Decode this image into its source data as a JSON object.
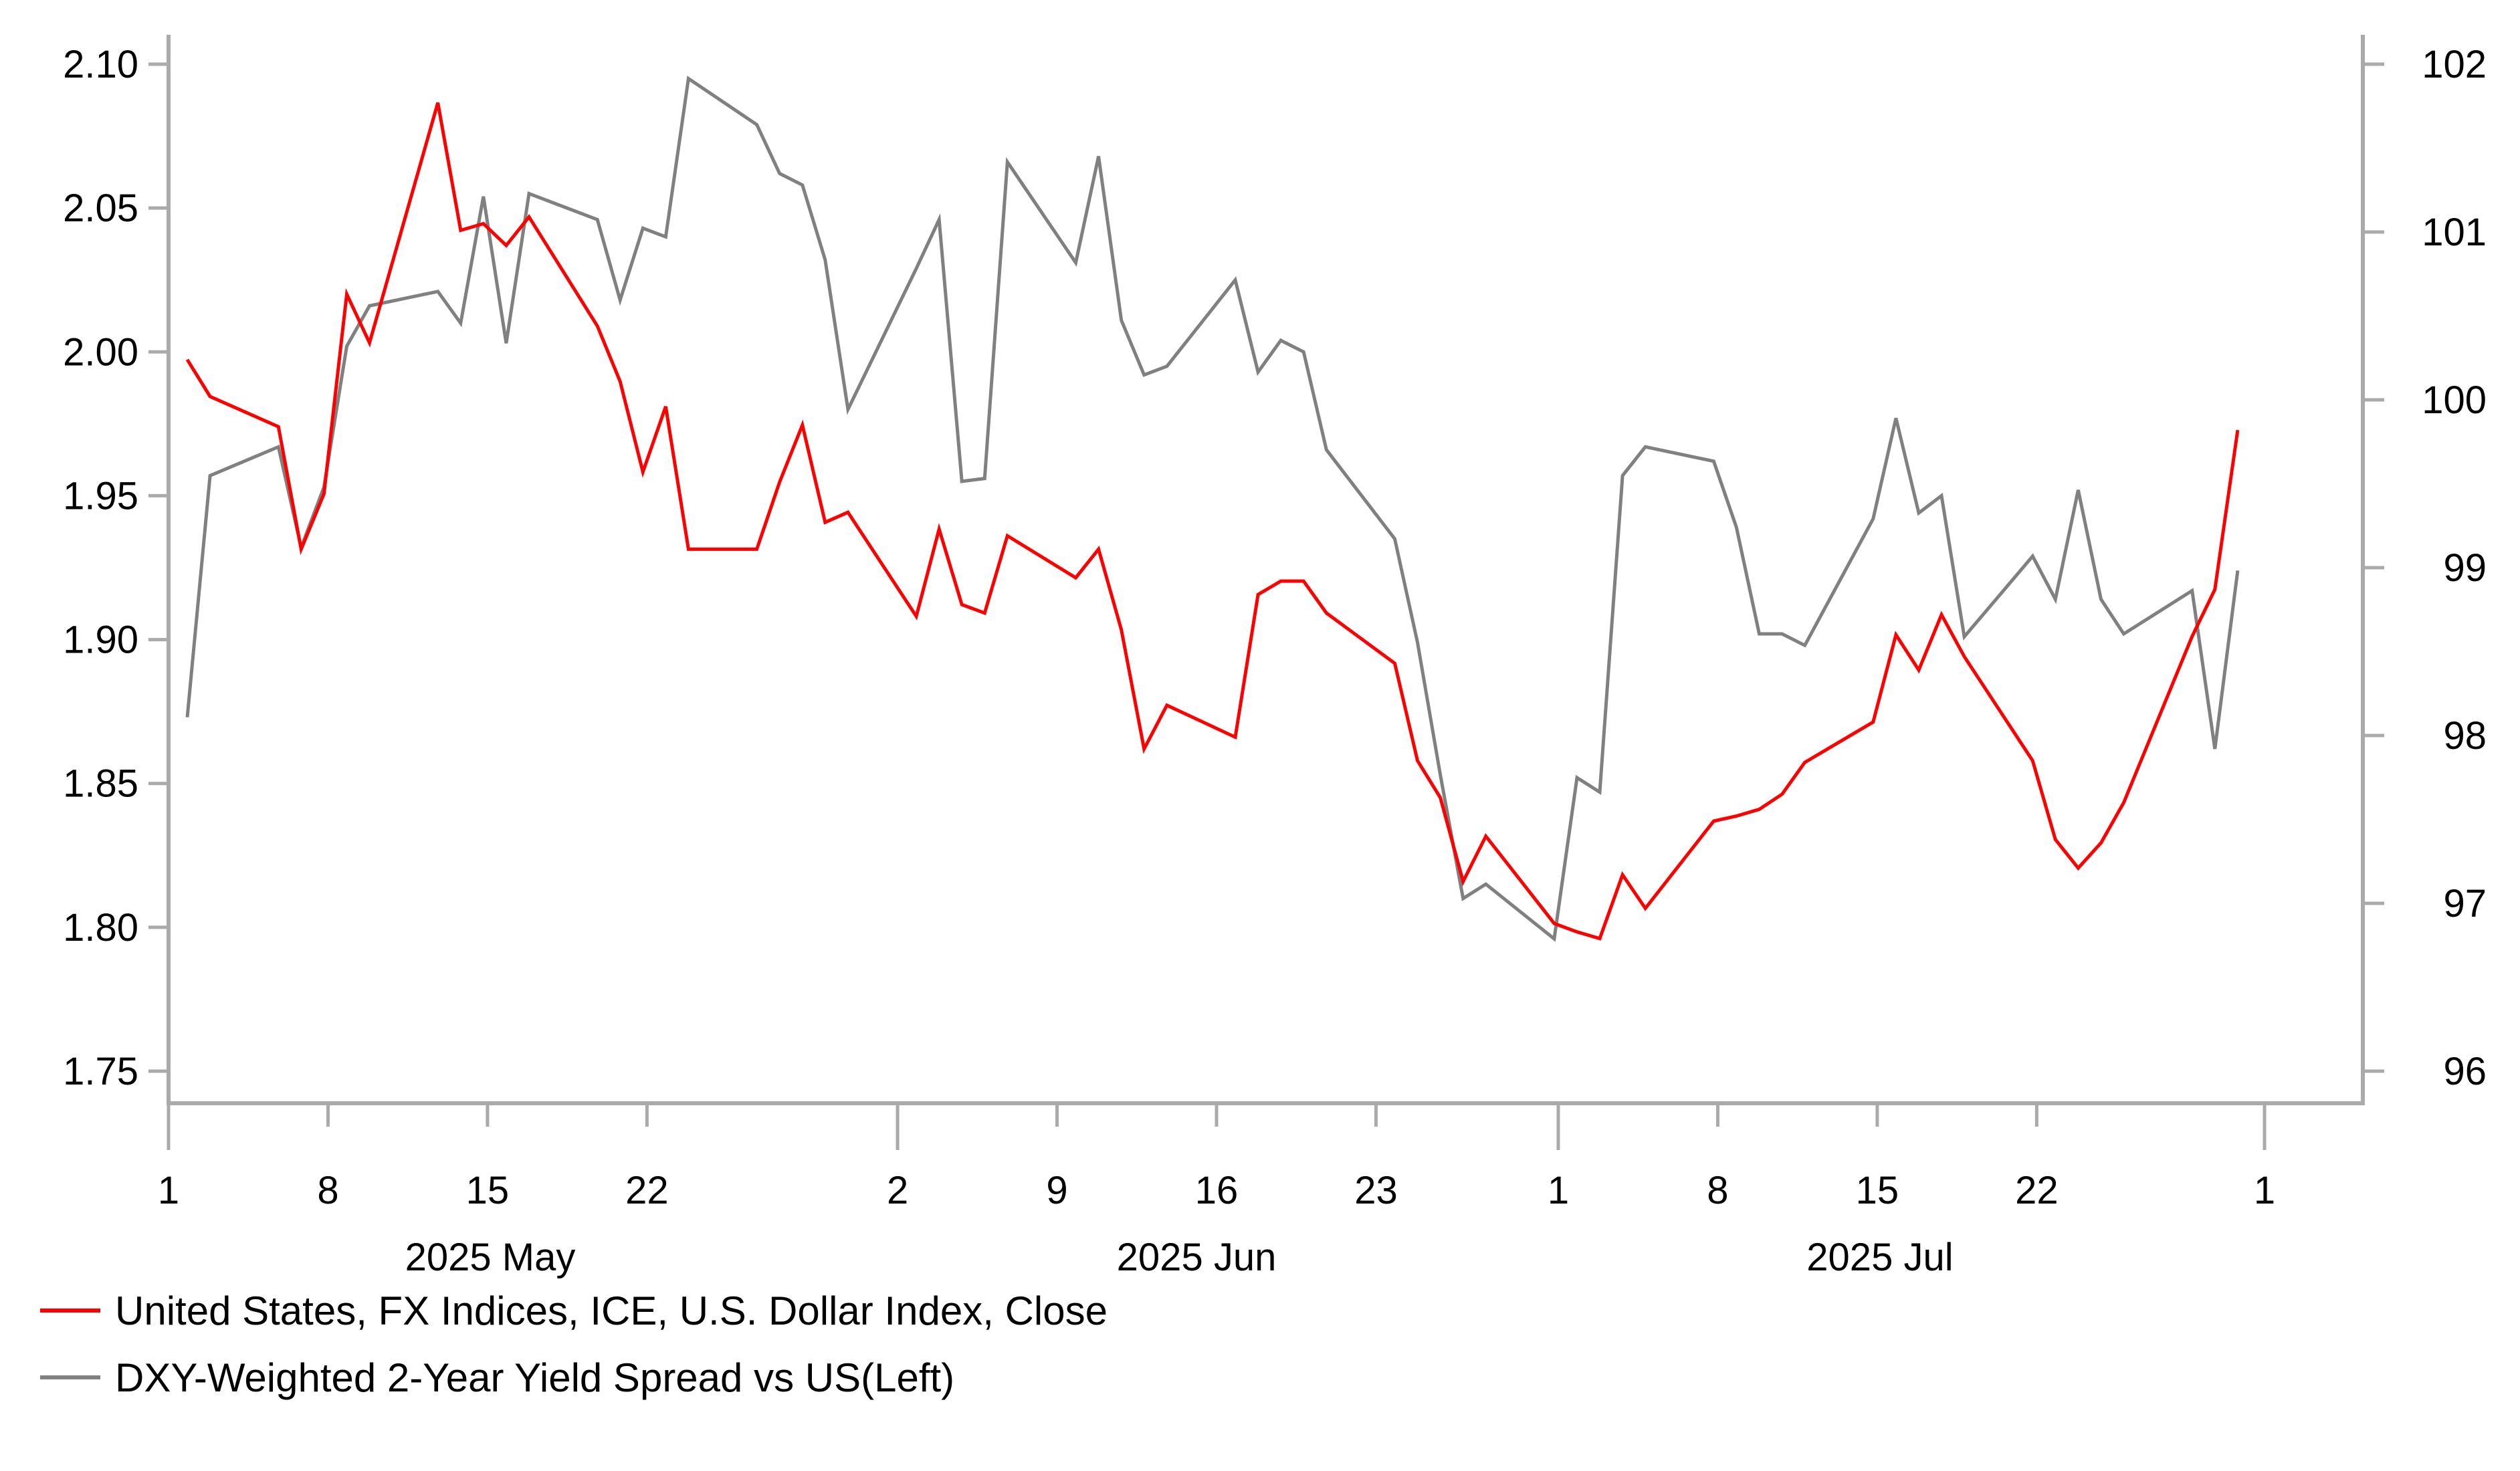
{
  "chart_data": {
    "type": "line",
    "title": "",
    "xlabel": "",
    "ylabel_left": "",
    "ylabel_right": "",
    "grid": false,
    "legend_position": "bottom-left",
    "x_ticks": [
      {
        "label": "1",
        "date": "2025-05-01",
        "major": true
      },
      {
        "label": "8",
        "date": "2025-05-08",
        "major": false
      },
      {
        "label": "15",
        "date": "2025-05-15",
        "major": false
      },
      {
        "label": "22",
        "date": "2025-05-22",
        "major": false
      },
      {
        "label": "2",
        "date": "2025-06-02",
        "major": true
      },
      {
        "label": "9",
        "date": "2025-06-09",
        "major": false
      },
      {
        "label": "16",
        "date": "2025-06-16",
        "major": false
      },
      {
        "label": "23",
        "date": "2025-06-23",
        "major": false
      },
      {
        "label": "1",
        "date": "2025-07-01",
        "major": true
      },
      {
        "label": "8",
        "date": "2025-07-08",
        "major": false
      },
      {
        "label": "15",
        "date": "2025-07-15",
        "major": false
      },
      {
        "label": "22",
        "date": "2025-07-22",
        "major": false
      },
      {
        "label": "1",
        "date": "2025-08-01",
        "major": true
      }
    ],
    "month_labels": [
      {
        "label": "2025 May",
        "date": "2025-05-16"
      },
      {
        "label": "2025 Jun",
        "date": "2025-06-16"
      },
      {
        "label": "2025 Jul",
        "date": "2025-07-16"
      }
    ],
    "x_range": [
      "2025-05-01",
      "2025-08-05"
    ],
    "left_axis": {
      "ticks": [
        "1.75",
        "1.80",
        "1.85",
        "1.90",
        "1.95",
        "2.00",
        "2.05",
        "2.10"
      ],
      "ylim": [
        1.734,
        2.11
      ]
    },
    "right_axis": {
      "ticks": [
        "96",
        "97",
        "98",
        "99",
        "100",
        "101",
        "102"
      ],
      "ylim": [
        95.7,
        102.1
      ]
    },
    "x": [
      "2025-05-01",
      "2025-05-02",
      "2025-05-05",
      "2025-05-06",
      "2025-05-07",
      "2025-05-08",
      "2025-05-09",
      "2025-05-12",
      "2025-05-13",
      "2025-05-14",
      "2025-05-15",
      "2025-05-16",
      "2025-05-19",
      "2025-05-20",
      "2025-05-21",
      "2025-05-22",
      "2025-05-23",
      "2025-05-26",
      "2025-05-27",
      "2025-05-28",
      "2025-05-29",
      "2025-05-30",
      "2025-06-02",
      "2025-06-03",
      "2025-06-04",
      "2025-06-05",
      "2025-06-06",
      "2025-06-09",
      "2025-06-10",
      "2025-06-11",
      "2025-06-12",
      "2025-06-13",
      "2025-06-16",
      "2025-06-17",
      "2025-06-18",
      "2025-06-19",
      "2025-06-20",
      "2025-06-23",
      "2025-06-24",
      "2025-06-25",
      "2025-06-26",
      "2025-06-27",
      "2025-06-30",
      "2025-07-01",
      "2025-07-02",
      "2025-07-03",
      "2025-07-04",
      "2025-07-07",
      "2025-07-08",
      "2025-07-09",
      "2025-07-10",
      "2025-07-11",
      "2025-07-14",
      "2025-07-15",
      "2025-07-16",
      "2025-07-17",
      "2025-07-18",
      "2025-07-21",
      "2025-07-22",
      "2025-07-23",
      "2025-07-24",
      "2025-07-25",
      "2025-07-28",
      "2025-07-29",
      "2025-07-30"
    ],
    "series": [
      {
        "name": "United States, FX Indices, ICE, U.S. Dollar Index, Close",
        "axis": "right",
        "color": "#ff0000",
        "values": [
          100.24,
          100.02,
          99.84,
          99.11,
          99.44,
          100.63,
          100.34,
          101.77,
          101.01,
          101.05,
          100.92,
          101.09,
          100.44,
          100.11,
          99.57,
          99.96,
          99.11,
          99.11,
          99.51,
          99.85,
          99.27,
          99.33,
          98.71,
          99.23,
          98.78,
          98.73,
          99.19,
          98.94,
          99.11,
          98.63,
          97.92,
          98.18,
          97.99,
          98.84,
          98.92,
          98.92,
          98.73,
          98.43,
          97.85,
          97.63,
          97.13,
          97.4,
          96.88,
          96.83,
          96.79,
          97.17,
          96.97,
          97.49,
          97.52,
          97.56,
          97.65,
          97.84,
          98.08,
          98.6,
          98.39,
          98.72,
          98.47,
          97.85,
          97.38,
          97.21,
          97.36,
          97.6,
          98.59,
          98.87,
          99.82
        ]
      },
      {
        "name": "DXY-Weighted 2-Year Yield Spread vs US(Left)",
        "axis": "left",
        "color": "#808080",
        "values": [
          1.873,
          1.957,
          1.967,
          1.932,
          1.953,
          2.002,
          2.016,
          2.021,
          2.01,
          2.054,
          2.003,
          2.055,
          2.046,
          2.018,
          2.043,
          2.04,
          2.095,
          2.079,
          2.062,
          2.058,
          2.032,
          1.98,
          2.029,
          2.046,
          1.955,
          1.956,
          2.066,
          2.031,
          2.068,
          2.011,
          1.992,
          1.995,
          2.025,
          1.993,
          2.004,
          2.0,
          1.966,
          1.935,
          1.899,
          1.853,
          1.81,
          1.815,
          1.796,
          1.852,
          1.847,
          1.957,
          1.967,
          1.962,
          1.939,
          1.902,
          1.902,
          1.898,
          1.942,
          1.977,
          1.944,
          1.95,
          1.901,
          1.929,
          1.914,
          1.952,
          1.914,
          1.902,
          1.917,
          1.862,
          1.924
        ]
      }
    ]
  },
  "legend": {
    "items": [
      {
        "label": "United States, FX Indices, ICE, U.S. Dollar Index, Close",
        "color": "#ff0000"
      },
      {
        "label": "DXY-Weighted 2-Year Yield Spread vs US(Left)",
        "color": "#808080"
      }
    ]
  },
  "colors": {
    "axis": "#aaaaaa",
    "text": "#000000"
  }
}
